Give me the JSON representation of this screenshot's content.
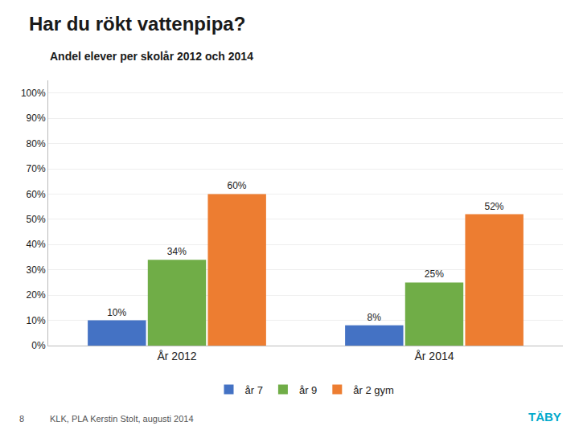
{
  "chart_data": {
    "type": "bar",
    "title": "Har du rökt vattenpipa?",
    "subtitle": "Andel elever per skolår 2012 och 2014",
    "categories": [
      "År 2012",
      "År 2014"
    ],
    "series": [
      {
        "name": "år 7",
        "color": "#4472c4",
        "values": [
          10,
          8
        ],
        "value_labels": [
          "10%",
          "8%"
        ]
      },
      {
        "name": "år 9",
        "color": "#70ad47",
        "values": [
          34,
          25
        ],
        "value_labels": [
          "34%",
          "25%"
        ]
      },
      {
        "name": "år 2 gym",
        "color": "#ed7d31",
        "values": [
          60,
          52
        ],
        "value_labels": [
          "60%",
          "52%"
        ]
      }
    ],
    "ylim": [
      0,
      105
    ],
    "yticks": [
      {
        "value": 0,
        "label": "0%"
      },
      {
        "value": 10,
        "label": "10%"
      },
      {
        "value": 20,
        "label": "20%"
      },
      {
        "value": 30,
        "label": "30%"
      },
      {
        "value": 40,
        "label": "40%"
      },
      {
        "value": 50,
        "label": "50%"
      },
      {
        "value": 60,
        "label": "60%"
      },
      {
        "value": 70,
        "label": "70%"
      },
      {
        "value": 80,
        "label": "80%"
      },
      {
        "value": 90,
        "label": "90%"
      },
      {
        "value": 100,
        "label": "100%"
      }
    ],
    "grid": true,
    "legend": "bottom",
    "data_labels": true,
    "annotations": [
      {
        "text": "8"
      },
      {
        "text": "KLK, PLA Kerstin Stolt, augusti 2014"
      },
      {
        "text": "TÄBY",
        "color": "#00aacc"
      }
    ]
  }
}
